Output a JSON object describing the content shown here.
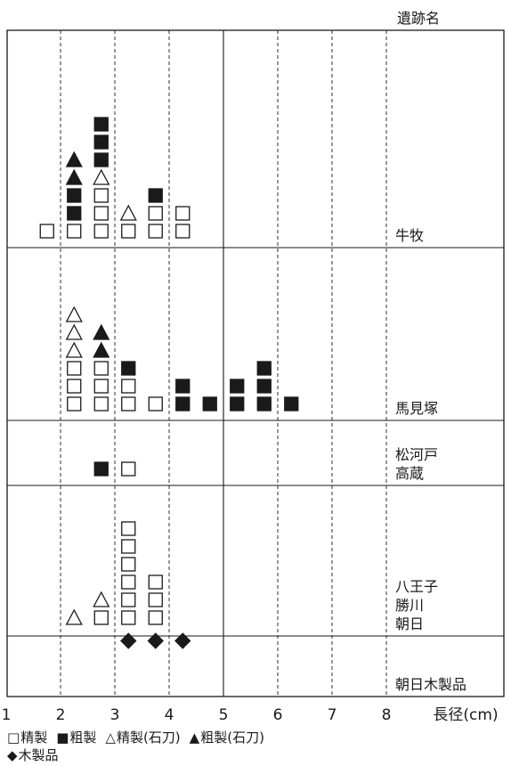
{
  "chart_data": {
    "type": "scatter",
    "header": "遺跡名",
    "xlabel": "長径(cm)",
    "xlim": [
      1,
      9
    ],
    "x_ticks": [
      "1",
      "2",
      "3",
      "4",
      "5",
      "6",
      "7",
      "8"
    ],
    "grid": "vertical",
    "colors": {
      "ink": "#1a1a1a",
      "paper": "#ffffff"
    },
    "marker_types": [
      {
        "id": "sq_open",
        "label": "精製",
        "glyph": "□"
      },
      {
        "id": "sq_fill",
        "label": "粗製",
        "glyph": "■"
      },
      {
        "id": "tri_open",
        "label": "精製(石刀)",
        "glyph": "△"
      },
      {
        "id": "tri_fill",
        "label": "粗製(石刀)",
        "glyph": "▲"
      },
      {
        "id": "diamond",
        "label": "木製品",
        "glyph": "◆"
      }
    ],
    "sites": [
      {
        "labels": [
          "牛牧"
        ],
        "columns": [
          {
            "x": 1.75,
            "markers": [
              "sq_open"
            ]
          },
          {
            "x": 2.25,
            "markers": [
              "sq_open",
              "sq_fill",
              "sq_fill",
              "tri_fill",
              "tri_fill"
            ]
          },
          {
            "x": 2.75,
            "markers": [
              "sq_open",
              "sq_open",
              "sq_open",
              "tri_open",
              "sq_fill",
              "sq_fill",
              "sq_fill"
            ]
          },
          {
            "x": 3.25,
            "markers": [
              "sq_open",
              "tri_open"
            ]
          },
          {
            "x": 3.75,
            "markers": [
              "sq_open",
              "sq_open",
              "sq_fill"
            ]
          },
          {
            "x": 4.25,
            "markers": [
              "sq_open",
              "sq_open"
            ]
          }
        ]
      },
      {
        "labels": [
          "馬見塚"
        ],
        "columns": [
          {
            "x": 2.25,
            "markers": [
              "sq_open",
              "sq_open",
              "sq_open",
              "tri_open",
              "tri_open",
              "tri_open"
            ]
          },
          {
            "x": 2.75,
            "markers": [
              "sq_open",
              "sq_open",
              "sq_open",
              "tri_fill",
              "tri_fill"
            ]
          },
          {
            "x": 3.25,
            "markers": [
              "sq_open",
              "sq_open",
              "sq_fill"
            ]
          },
          {
            "x": 3.75,
            "markers": [
              "sq_open"
            ]
          },
          {
            "x": 4.25,
            "markers": [
              "sq_fill",
              "sq_fill"
            ]
          },
          {
            "x": 4.75,
            "markers": [
              "sq_fill"
            ]
          },
          {
            "x": 5.25,
            "markers": [
              "sq_fill",
              "sq_fill"
            ]
          },
          {
            "x": 5.75,
            "markers": [
              "sq_fill",
              "sq_fill",
              "sq_fill"
            ]
          },
          {
            "x": 6.25,
            "markers": [
              "sq_fill"
            ]
          }
        ]
      },
      {
        "labels": [
          "松河戸",
          "高蔵"
        ],
        "columns": [
          {
            "x": 2.75,
            "markers": [
              "sq_fill"
            ]
          },
          {
            "x": 3.25,
            "markers": [
              "sq_open"
            ]
          }
        ]
      },
      {
        "labels": [
          "八王子",
          "勝川",
          "朝日"
        ],
        "columns": [
          {
            "x": 2.25,
            "markers": [
              "tri_open"
            ]
          },
          {
            "x": 2.75,
            "markers": [
              "sq_open",
              "tri_open"
            ]
          },
          {
            "x": 3.25,
            "markers": [
              "sq_open",
              "sq_open",
              "sq_open",
              "sq_open",
              "sq_open",
              "sq_open"
            ]
          },
          {
            "x": 3.75,
            "markers": [
              "sq_open",
              "sq_open",
              "sq_open"
            ]
          }
        ]
      },
      {
        "labels": [
          "朝日木製品"
        ],
        "columns": [
          {
            "x": 3.25,
            "markers": [
              "diamond"
            ]
          },
          {
            "x": 3.75,
            "markers": [
              "diamond"
            ]
          },
          {
            "x": 4.25,
            "markers": [
              "diamond"
            ]
          }
        ]
      }
    ],
    "legend": {
      "rows": [
        [
          "sq_open",
          "sq_fill",
          "tri_open",
          "tri_fill"
        ],
        [
          "diamond"
        ]
      ]
    }
  }
}
